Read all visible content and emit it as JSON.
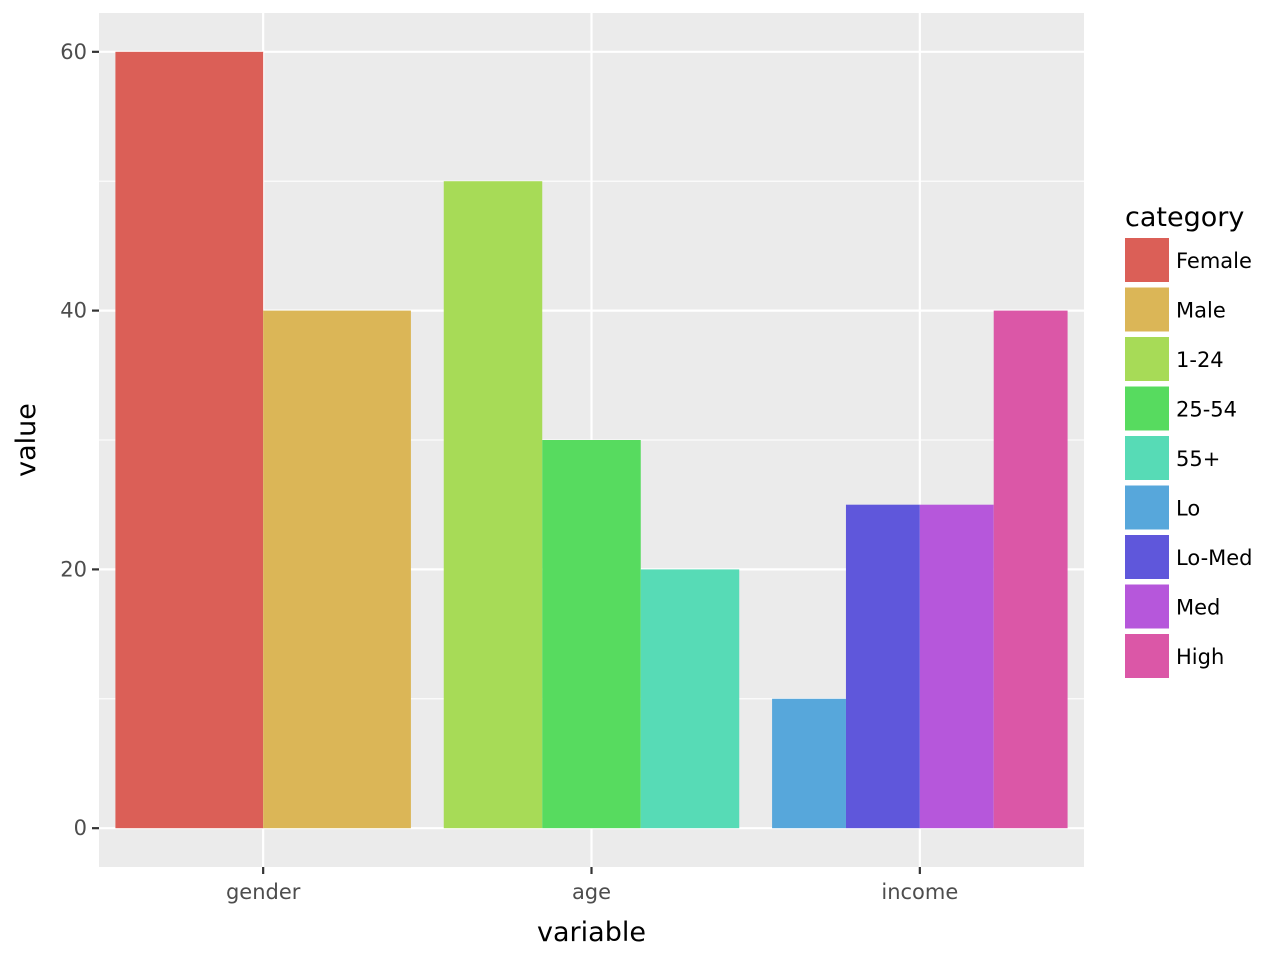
{
  "chart_data": {
    "type": "bar",
    "xlabel": "variable",
    "ylabel": "value",
    "ylim": [
      -3,
      63
    ],
    "y_ticks": [
      "0",
      "20",
      "40",
      "60"
    ],
    "grid": true,
    "legend": {
      "title": "category",
      "position": "right"
    },
    "categories": [
      "gender",
      "age",
      "income"
    ],
    "series": [
      {
        "name": "Female",
        "color": "#DB5F57",
        "points": [
          {
            "x": "gender",
            "y": 60
          }
        ]
      },
      {
        "name": "Male",
        "color": "#DBB657",
        "points": [
          {
            "x": "gender",
            "y": 40
          }
        ]
      },
      {
        "name": "1-24",
        "color": "#A7DB57",
        "points": [
          {
            "x": "age",
            "y": 50
          }
        ]
      },
      {
        "name": "25-54",
        "color": "#57DB5F",
        "points": [
          {
            "x": "age",
            "y": 30
          }
        ]
      },
      {
        "name": "55+",
        "color": "#57DBB6",
        "points": [
          {
            "x": "age",
            "y": 20
          }
        ]
      },
      {
        "name": "Lo",
        "color": "#57A7DB",
        "points": [
          {
            "x": "income",
            "y": 10
          }
        ]
      },
      {
        "name": "Lo-Med",
        "color": "#5F57DB",
        "points": [
          {
            "x": "income",
            "y": 25
          }
        ]
      },
      {
        "name": "Med",
        "color": "#B657DB",
        "points": [
          {
            "x": "income",
            "y": 25
          }
        ]
      },
      {
        "name": "High",
        "color": "#DB57A7",
        "points": [
          {
            "x": "income",
            "y": 40
          }
        ]
      }
    ],
    "style": {
      "panel_background": "#EBEBEB",
      "grid_color": "#FFFFFF",
      "tick_color": "#4D4D4D",
      "axis_title_color": "#000000"
    }
  }
}
